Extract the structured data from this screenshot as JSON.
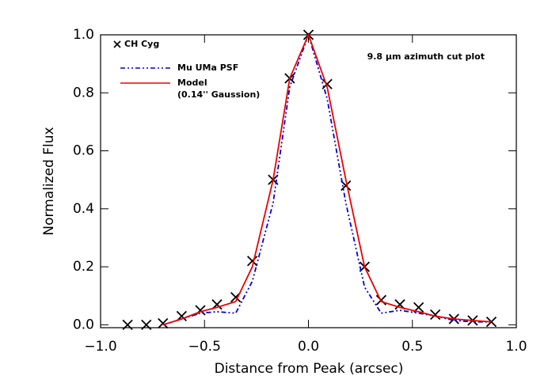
{
  "chart_data": {
    "type": "line",
    "xlabel": "Distance from Peak (arcsec)",
    "ylabel": "Normalized Flux",
    "annotation": "9.8 μm azimuth cut plot",
    "xlim": [
      -1.0,
      1.0
    ],
    "ylim": [
      -0.01,
      1.0
    ],
    "xticks": [
      {
        "value": -1.0,
        "label": "−1.0"
      },
      {
        "value": -0.5,
        "label": "−0.5"
      },
      {
        "value": 0,
        "label": "0.0"
      },
      {
        "value": 0.5,
        "label": "0.5"
      },
      {
        "value": 1.0,
        "label": "1.0"
      }
    ],
    "yticks": [
      {
        "value": 0,
        "label": "0.0"
      },
      0.2,
      0.4,
      0.6,
      0.8,
      {
        "value": 1.0,
        "label": "1.0"
      }
    ],
    "series": [
      {
        "name": "CH Cyg",
        "color": "#000000",
        "style": "marker",
        "x": [
          -0.87,
          -0.78,
          -0.7,
          -0.61,
          -0.52,
          -0.44,
          -0.35,
          -0.27,
          -0.17,
          -0.09,
          0,
          0.09,
          0.18,
          0.27,
          0.35,
          0.44,
          0.53,
          0.61,
          0.7,
          0.79,
          0.88
        ],
        "values": [
          0.0,
          0.0,
          0.005,
          0.03,
          0.05,
          0.07,
          0.095,
          0.22,
          0.5,
          0.85,
          1.0,
          0.83,
          0.48,
          0.2,
          0.085,
          0.07,
          0.06,
          0.035,
          0.02,
          0.015,
          0.01
        ]
      },
      {
        "name": "Mu UMa PSF",
        "color": "#0000dd",
        "style": "dashdot",
        "x": [
          -0.7,
          -0.61,
          -0.52,
          -0.44,
          -0.35,
          -0.27,
          -0.17,
          -0.09,
          0,
          0.09,
          0.18,
          0.27,
          0.35,
          0.44,
          0.53,
          0.61,
          0.7,
          0.79,
          0.88
        ],
        "values": [
          0.0,
          0.02,
          0.04,
          0.045,
          0.04,
          0.15,
          0.42,
          0.82,
          1.0,
          0.78,
          0.42,
          0.13,
          0.04,
          0.05,
          0.04,
          0.03,
          0.015,
          0.01,
          0.01
        ]
      },
      {
        "name": "Model",
        "name2": "(0.14'' Gaussion)",
        "color": "#ee0000",
        "style": "solid",
        "x": [
          -0.7,
          -0.61,
          -0.52,
          -0.44,
          -0.35,
          -0.27,
          -0.17,
          -0.09,
          0,
          0.09,
          0.18,
          0.27,
          0.35,
          0.44,
          0.53,
          0.61,
          0.7,
          0.79,
          0.88
        ],
        "values": [
          0.0,
          0.02,
          0.045,
          0.06,
          0.08,
          0.2,
          0.5,
          0.85,
          1.0,
          0.82,
          0.5,
          0.2,
          0.08,
          0.06,
          0.045,
          0.03,
          0.02,
          0.015,
          0.01
        ]
      }
    ]
  }
}
